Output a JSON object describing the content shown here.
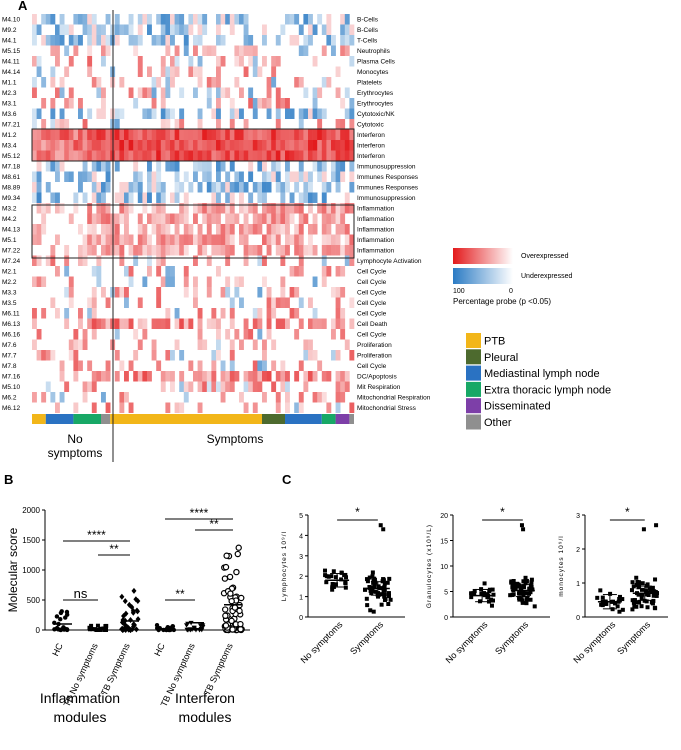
{
  "panel_labels": {
    "a": "A",
    "b": "B",
    "c": "C"
  },
  "heatmap": {
    "modules": [
      "M4.10",
      "M9.2",
      "M4.1",
      "M5.15",
      "M4.11",
      "M4.14",
      "M1.1",
      "M2.3",
      "M3.1",
      "M3.6",
      "M7.21",
      "M1.2",
      "M3.4",
      "M5.12",
      "M7.18",
      "M8.61",
      "M8.89",
      "M9.34",
      "M3.2",
      "M4.2",
      "M4.13",
      "M5.1",
      "M7.22",
      "M7.24",
      "M2.1",
      "M2.2",
      "M3.3",
      "M3.5",
      "M6.11",
      "M6.13",
      "M6.16",
      "M7.6",
      "M7.7",
      "M7.8",
      "M7.16",
      "M5.10",
      "M6.2",
      "M6.12"
    ],
    "functions": [
      "B-Cells",
      "B-Cells",
      "T-Cells",
      "Neutrophils",
      "Plasma Cells",
      "Monocytes",
      "Platelets",
      "Erythrocytes",
      "Erythrocytes",
      "Cytotoxic/NK",
      "Cytotoxic",
      "Interferon",
      "Interferon",
      "Interferon",
      "Immunosuppression",
      "Immunes Responses",
      "Immunes Responses",
      "Immunosuppression",
      "Inflammation",
      "Inflammation",
      "Inflammation",
      "Inflammation",
      "Inflammation",
      "Lymphocyte Activation",
      "Cell Cycle",
      "Cell Cycle",
      "Cell Cycle",
      "Cell Cycle",
      "Cell Cycle",
      "Cell Death",
      "Cell Cycle",
      "Proliferation",
      "Proliferation",
      "Cell Cycle",
      "DC/Apoptosis",
      "Mit Respiration",
      "Mitochondrial Respiration",
      "Mitochondrial Stress"
    ],
    "columns": 70,
    "group_labels": {
      "no_symptoms_line1": "No",
      "no_symptoms_line2": "symptoms",
      "symptoms": "Symptoms"
    },
    "legend": {
      "over": "Overexpressed",
      "under": "Underexpressed",
      "hundred": "100",
      "zero": "0",
      "caption": "Percentage probe (p <0.05)"
    },
    "categories": [
      {
        "label": "PTB",
        "color": "#f2b619"
      },
      {
        "label": "Pleural",
        "color": "#4d6a2e"
      },
      {
        "label": "Mediastinal lymph node",
        "color": "#2a72c2"
      },
      {
        "label": "Extra thoracic lymph node",
        "color": "#18a866"
      },
      {
        "label": "Disseminated",
        "color": "#7d3fa8"
      },
      {
        "label": "Other",
        "color": "#8f8f8f"
      }
    ],
    "colors": {
      "over": "#e31a1c",
      "under": "#2b7bc4"
    }
  },
  "panel_b": {
    "ylabel": "Molecular score",
    "yticks": [
      "2000",
      "1500",
      "1000",
      "500",
      "0"
    ],
    "xlabels": [
      "HC",
      "TB No symptoms",
      "TB Symptoms",
      "HC",
      "TB No symptoms",
      "TB Symptoms"
    ],
    "group_labels": [
      [
        "Inflammation",
        "modules"
      ],
      [
        "Interferon",
        "modules"
      ]
    ],
    "annotations": [
      "****",
      "**",
      "ns",
      "****",
      "**",
      "**"
    ]
  },
  "panel_c": {
    "plots": [
      {
        "ylabel": "Lymphocytes 10⁹/l",
        "yticks": [
          "5",
          "4",
          "3",
          "2",
          "1",
          "0"
        ],
        "xlabels": [
          "No symptoms",
          "Symptoms"
        ],
        "sig": "*"
      },
      {
        "ylabel": "Granulocytes (x10⁹/L)",
        "yticks": [
          "20",
          "15",
          "10",
          "5",
          "0"
        ],
        "xlabels": [
          "No symptoms",
          "Symptoms"
        ],
        "sig": "*"
      },
      {
        "ylabel": "monocytes 10⁹/l",
        "yticks": [
          "3",
          "2",
          "1",
          "0"
        ],
        "xlabels": [
          "No symptoms",
          "Symptoms"
        ],
        "sig": "*"
      }
    ]
  }
}
